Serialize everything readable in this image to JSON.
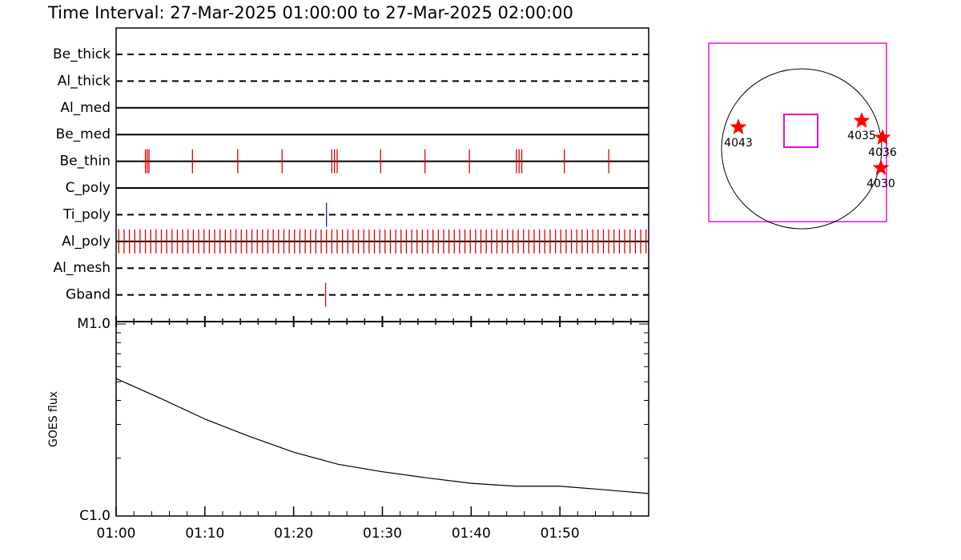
{
  "chart_data": [
    {
      "type": "event",
      "title": "Time Interval: 27-Mar-2025 01:00:00 to 27-Mar-2025 02:00:00",
      "xlim": [
        0,
        60
      ],
      "rows": [
        {
          "label": "Be_thick",
          "style": "dashed",
          "color": "#e00000",
          "events": []
        },
        {
          "label": "Al_thick",
          "style": "dashed",
          "color": "#e00000",
          "events": []
        },
        {
          "label": "Al_med",
          "style": "solid",
          "color": "#e00000",
          "events": []
        },
        {
          "label": "Be_med",
          "style": "solid",
          "color": "#e00000",
          "events": []
        },
        {
          "label": "Be_thin",
          "style": "solid",
          "color": "#e00000",
          "events": [
            3.3,
            3.5,
            3.7,
            8.6,
            13.7,
            18.7,
            24.3,
            24.6,
            24.9,
            29.8,
            34.8,
            39.8,
            45.1,
            45.4,
            45.7,
            50.5,
            55.5
          ]
        },
        {
          "label": "C_poly",
          "style": "solid",
          "color": "#e00000",
          "events": []
        },
        {
          "label": "Ti_poly",
          "style": "dashed",
          "color": "#1020d0",
          "events": [
            23.7
          ]
        },
        {
          "label": "Al_poly",
          "style": "solid",
          "color": "#e00000",
          "events": [
            0.3,
            0.9,
            1.5,
            2.1,
            2.7,
            3.3,
            3.9,
            4.5,
            5.1,
            5.7,
            6.3,
            6.9,
            7.5,
            8.1,
            8.7,
            9.3,
            9.9,
            10.5,
            11.1,
            11.7,
            12.3,
            12.9,
            13.5,
            14.1,
            14.7,
            15.3,
            15.9,
            16.5,
            17.1,
            17.7,
            18.3,
            18.9,
            19.5,
            20.1,
            20.7,
            21.3,
            21.9,
            22.5,
            23.1,
            23.7,
            24.3,
            24.9,
            25.5,
            26.1,
            26.7,
            27.3,
            27.9,
            28.5,
            29.1,
            29.7,
            30.3,
            30.9,
            31.5,
            32.1,
            32.7,
            33.3,
            33.9,
            34.5,
            35.1,
            35.7,
            36.3,
            36.9,
            37.5,
            38.1,
            38.7,
            39.3,
            39.9,
            40.5,
            41.1,
            41.7,
            42.3,
            42.9,
            43.5,
            44.1,
            44.7,
            45.3,
            45.9,
            46.5,
            47.1,
            47.7,
            48.3,
            48.9,
            49.5,
            50.1,
            50.7,
            51.3,
            51.9,
            52.5,
            53.1,
            53.7,
            54.3,
            54.9,
            55.5,
            56.1,
            56.7,
            57.3,
            57.9,
            58.5,
            59.1,
            59.7
          ]
        },
        {
          "label": "Al_mesh",
          "style": "dashed",
          "color": "#e00000",
          "events": []
        },
        {
          "label": "Gband",
          "style": "dashed",
          "color": "#e00000",
          "events": [
            23.6
          ]
        }
      ]
    },
    {
      "type": "line",
      "ylabel": "GOES flux",
      "log_y": true,
      "color": "#000000",
      "x": [
        0,
        5,
        10,
        15,
        20,
        25,
        30,
        35,
        40,
        45,
        50,
        55,
        60
      ],
      "values": [
        5.2e-06,
        4.1e-06,
        3.2e-06,
        2.6e-06,
        2.15e-06,
        1.86e-06,
        1.7e-06,
        1.58e-06,
        1.48e-06,
        1.43e-06,
        1.43e-06,
        1.37e-06,
        1.31e-06
      ],
      "xlim": [
        0,
        60
      ],
      "xticks": [
        {
          "value": 0,
          "label": "01:00"
        },
        {
          "value": 10,
          "label": "01:10"
        },
        {
          "value": 20,
          "label": "01:20"
        },
        {
          "value": 30,
          "label": "01:30"
        },
        {
          "value": 40,
          "label": "01:40"
        },
        {
          "value": 50,
          "label": "01:50"
        }
      ],
      "xminorticks": [
        2,
        4,
        6,
        8,
        12,
        14,
        16,
        18,
        22,
        24,
        26,
        28,
        32,
        34,
        36,
        38,
        42,
        44,
        46,
        48,
        52,
        54,
        56,
        58
      ],
      "ylim": [
        1e-06,
        1e-05
      ],
      "yticks": [
        {
          "value": 1e-06,
          "label": "C1.0"
        },
        {
          "value": 1e-05,
          "label": "M1.0"
        }
      ],
      "yminorticks": [
        2e-06,
        3e-06,
        4e-06,
        5e-06,
        6e-06,
        7e-06,
        8e-06,
        9e-06
      ]
    }
  ],
  "sun_map": {
    "regions": [
      {
        "label": "4043"
      },
      {
        "label": "4035"
      },
      {
        "label": "4036"
      },
      {
        "label": "4030"
      }
    ]
  }
}
